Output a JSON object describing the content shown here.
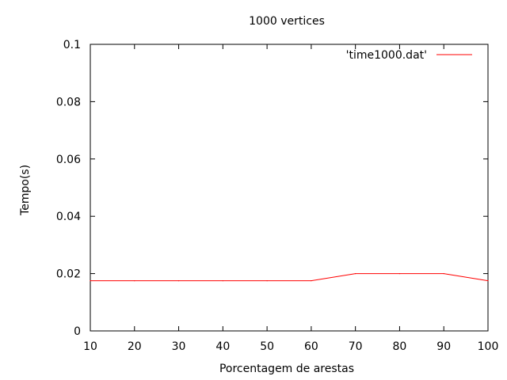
{
  "chart_data": {
    "type": "line",
    "title": "1000 vertices",
    "xlabel": "Porcentagem de arestas",
    "ylabel": "Tempo(s)",
    "xlim": [
      10,
      100
    ],
    "ylim": [
      0,
      0.1
    ],
    "x_ticks": [
      "10",
      "20",
      "30",
      "40",
      "50",
      "60",
      "70",
      "80",
      "90",
      "100"
    ],
    "y_ticks": [
      "0",
      "0.02",
      "0.04",
      "0.06",
      "0.08",
      "0.1"
    ],
    "grid": false,
    "legend_position": "top-right",
    "series": [
      {
        "name": "'time1000.dat'",
        "color": "#ff0000",
        "x": [
          10,
          20,
          30,
          40,
          50,
          60,
          70,
          80,
          90,
          100
        ],
        "y": [
          0.0175,
          0.0175,
          0.0175,
          0.0175,
          0.0175,
          0.0175,
          0.02,
          0.02,
          0.02,
          0.0175
        ]
      }
    ]
  }
}
